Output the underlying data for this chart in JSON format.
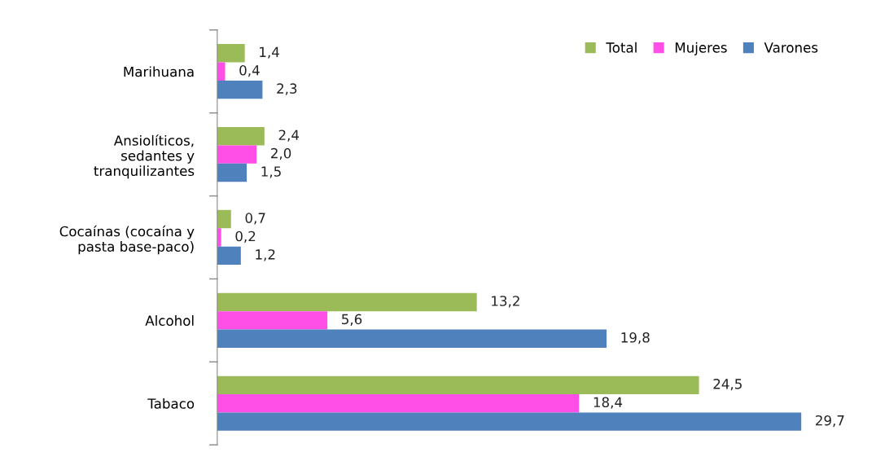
{
  "chart_data": {
    "type": "bar",
    "orientation": "horizontal",
    "categories": [
      "Marihuana",
      "Ansiolíticos,\nsedantes y\ntranquilizantes",
      "Cocaínas (cocaína y\npasta base-paco)",
      "Alcohol",
      "Tabaco"
    ],
    "series": [
      {
        "name": "Total",
        "color": "#9bbb59",
        "values": [
          1.4,
          2.4,
          0.7,
          13.2,
          24.5
        ],
        "value_labels": [
          "1,4",
          "2,4",
          "0,7",
          "13,2",
          "24,5"
        ]
      },
      {
        "name": "Mujeres",
        "color": "#ff4fe6",
        "values": [
          0.4,
          2.0,
          0.2,
          5.6,
          18.4
        ],
        "value_labels": [
          "0,4",
          "2,0",
          "0,2",
          "5,6",
          "18,4"
        ]
      },
      {
        "name": "Varones",
        "color": "#4f81bd",
        "values": [
          2.3,
          1.5,
          1.2,
          19.8,
          29.7
        ],
        "value_labels": [
          "2,3",
          "1,5",
          "1,2",
          "19,8",
          "29,7"
        ]
      }
    ],
    "legend": "top right",
    "grid": false
  }
}
